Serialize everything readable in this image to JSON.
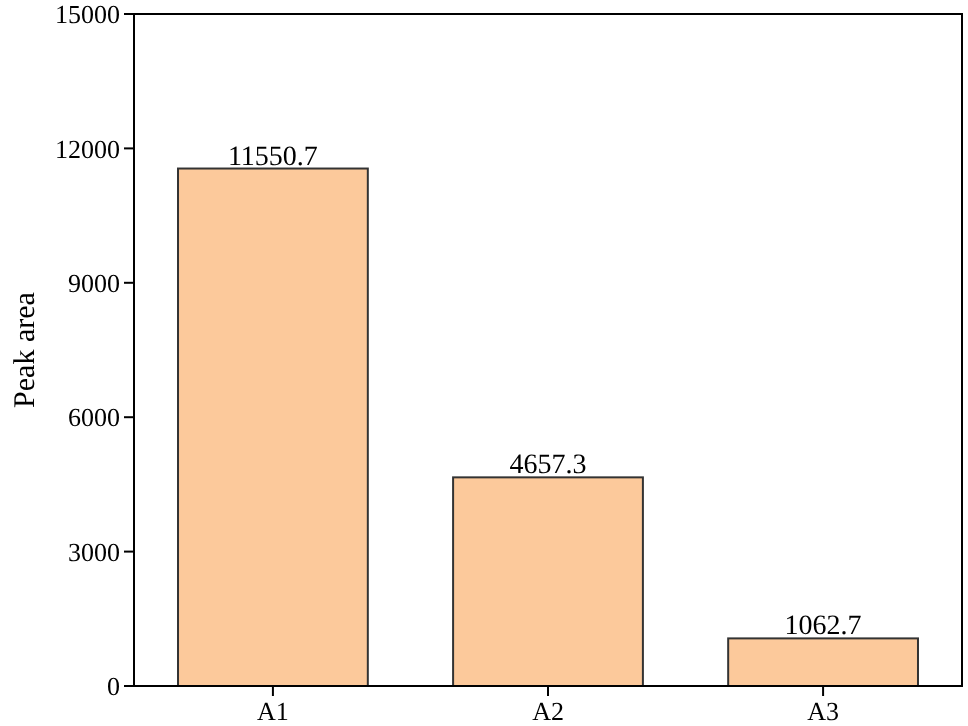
{
  "chart_data": {
    "type": "bar",
    "categories": [
      "A1",
      "A2",
      "A3"
    ],
    "values": [
      11550.7,
      4657.3,
      1062.7
    ],
    "color": "#fcc99b",
    "ylabel": "Peak area",
    "ylim": [
      0,
      15000
    ],
    "yticks": [
      0,
      3000,
      6000,
      9000,
      12000,
      15000
    ],
    "data_labels": true
  }
}
